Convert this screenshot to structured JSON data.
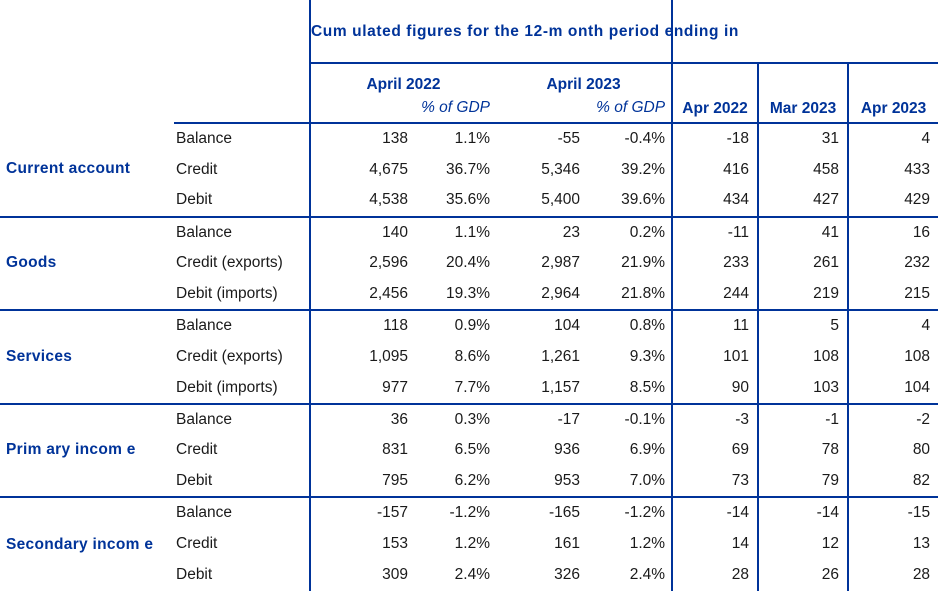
{
  "header": {
    "cumulated_title": "Cum ulated figures for the 12-m onth period ending in",
    "year1": "April 2022",
    "year2": "April 2023",
    "gdp_label": "% of GDP",
    "months": [
      "Apr 2022",
      "Mar 2023",
      "Apr 2023"
    ]
  },
  "groups": [
    {
      "name": "Current account",
      "rows": [
        {
          "label": "Balance",
          "v1": "138",
          "p1": "1.1%",
          "v2": "-55",
          "p2": "-0.4%",
          "m1": "-18",
          "m2": "31",
          "m3": "4"
        },
        {
          "label": "Credit",
          "v1": "4,675",
          "p1": "36.7%",
          "v2": "5,346",
          "p2": "39.2%",
          "m1": "416",
          "m2": "458",
          "m3": "433"
        },
        {
          "label": "Debit",
          "v1": "4,538",
          "p1": "35.6%",
          "v2": "5,400",
          "p2": "39.6%",
          "m1": "434",
          "m2": "427",
          "m3": "429"
        }
      ]
    },
    {
      "name": "Goods",
      "rows": [
        {
          "label": "Balance",
          "v1": "140",
          "p1": "1.1%",
          "v2": "23",
          "p2": "0.2%",
          "m1": "-11",
          "m2": "41",
          "m3": "16"
        },
        {
          "label": "Credit (exports)",
          "v1": "2,596",
          "p1": "20.4%",
          "v2": "2,987",
          "p2": "21.9%",
          "m1": "233",
          "m2": "261",
          "m3": "232"
        },
        {
          "label": "Debit (imports)",
          "v1": "2,456",
          "p1": "19.3%",
          "v2": "2,964",
          "p2": "21.8%",
          "m1": "244",
          "m2": "219",
          "m3": "215"
        }
      ]
    },
    {
      "name": "Services",
      "rows": [
        {
          "label": "Balance",
          "v1": "118",
          "p1": "0.9%",
          "v2": "104",
          "p2": "0.8%",
          "m1": "11",
          "m2": "5",
          "m3": "4"
        },
        {
          "label": "Credit (exports)",
          "v1": "1,095",
          "p1": "8.6%",
          "v2": "1,261",
          "p2": "9.3%",
          "m1": "101",
          "m2": "108",
          "m3": "108"
        },
        {
          "label": "Debit (imports)",
          "v1": "977",
          "p1": "7.7%",
          "v2": "1,157",
          "p2": "8.5%",
          "m1": "90",
          "m2": "103",
          "m3": "104"
        }
      ]
    },
    {
      "name": "Prim ary incom e",
      "rows": [
        {
          "label": "Balance",
          "v1": "36",
          "p1": "0.3%",
          "v2": "-17",
          "p2": "-0.1%",
          "m1": "-3",
          "m2": "-1",
          "m3": "-2"
        },
        {
          "label": "Credit",
          "v1": "831",
          "p1": "6.5%",
          "v2": "936",
          "p2": "6.9%",
          "m1": "69",
          "m2": "78",
          "m3": "80"
        },
        {
          "label": "Debit",
          "v1": "795",
          "p1": "6.2%",
          "v2": "953",
          "p2": "7.0%",
          "m1": "73",
          "m2": "79",
          "m3": "82"
        }
      ]
    },
    {
      "name": "Secondary incom e",
      "rows": [
        {
          "label": "Balance",
          "v1": "-157",
          "p1": "-1.2%",
          "v2": "-165",
          "p2": "-1.2%",
          "m1": "-14",
          "m2": "-14",
          "m3": "-15"
        },
        {
          "label": "Credit",
          "v1": "153",
          "p1": "1.2%",
          "v2": "161",
          "p2": "1.2%",
          "m1": "14",
          "m2": "12",
          "m3": "13"
        },
        {
          "label": "Debit",
          "v1": "309",
          "p1": "2.4%",
          "v2": "326",
          "p2": "2.4%",
          "m1": "28",
          "m2": "26",
          "m3": "28"
        }
      ]
    }
  ]
}
